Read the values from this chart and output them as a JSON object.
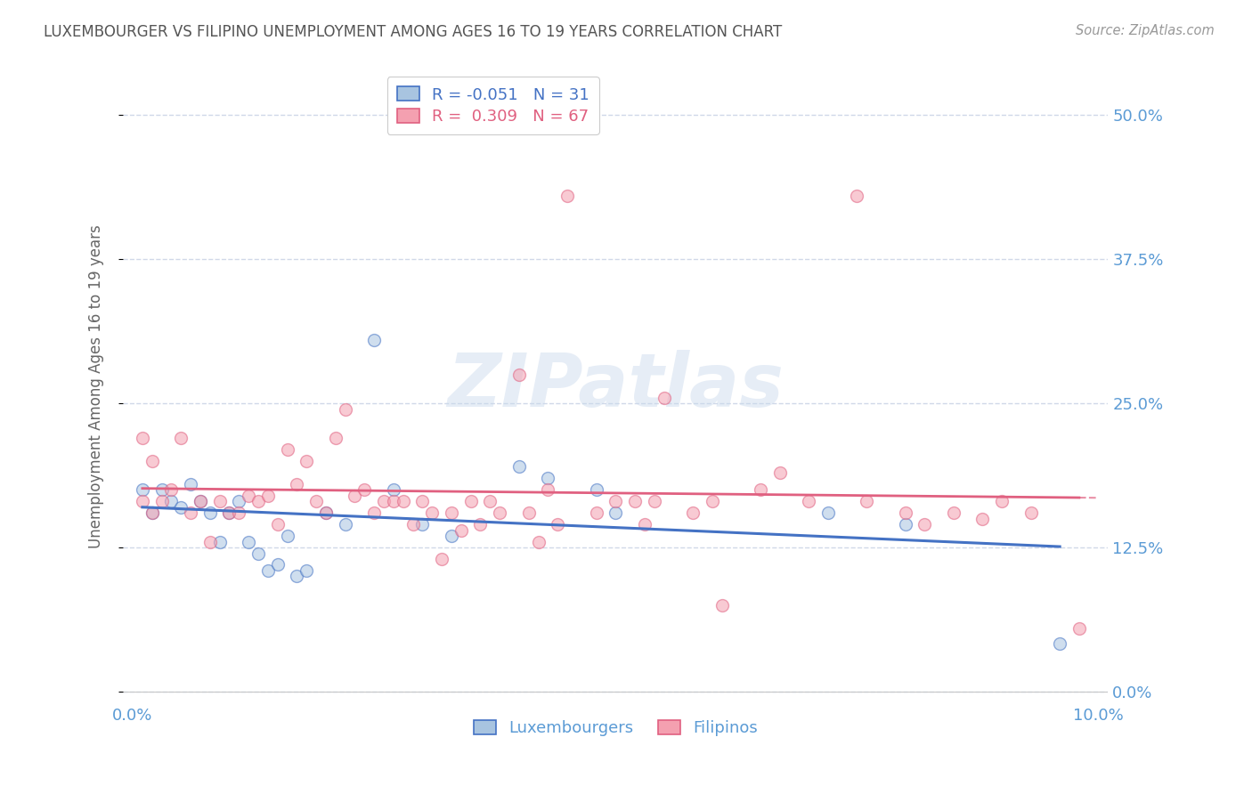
{
  "title": "LUXEMBOURGER VS FILIPINO UNEMPLOYMENT AMONG AGES 16 TO 19 YEARS CORRELATION CHART",
  "source": "Source: ZipAtlas.com",
  "ylabel": "Unemployment Among Ages 16 to 19 years",
  "legend_lux": "Luxembourgers",
  "legend_fil": "Filipinos",
  "R_lux": -0.051,
  "N_lux": 31,
  "R_fil": 0.309,
  "N_fil": 67,
  "xlim": [
    -0.001,
    0.101
  ],
  "ylim": [
    -0.01,
    0.54
  ],
  "yticks": [
    0.0,
    0.125,
    0.25,
    0.375,
    0.5
  ],
  "ytick_labels": [
    "0.0%",
    "12.5%",
    "25.0%",
    "37.5%",
    "50.0%"
  ],
  "xticks": [
    0.0,
    0.1
  ],
  "xtick_labels": [
    "0.0%",
    "10.0%"
  ],
  "color_lux": "#a8c4e0",
  "color_fil": "#f4a0b0",
  "line_color_lux": "#4472c4",
  "line_color_fil": "#e06080",
  "title_color": "#555555",
  "axis_color": "#5b9bd5",
  "background_color": "#ffffff",
  "grid_color": "#d0d8e8",
  "lux_x": [
    0.001,
    0.002,
    0.003,
    0.004,
    0.005,
    0.006,
    0.007,
    0.008,
    0.009,
    0.01,
    0.011,
    0.012,
    0.013,
    0.014,
    0.015,
    0.016,
    0.017,
    0.018,
    0.02,
    0.022,
    0.025,
    0.027,
    0.03,
    0.033,
    0.04,
    0.043,
    0.048,
    0.05,
    0.072,
    0.08,
    0.096
  ],
  "lux_y": [
    0.175,
    0.155,
    0.175,
    0.165,
    0.16,
    0.18,
    0.165,
    0.155,
    0.13,
    0.155,
    0.165,
    0.13,
    0.12,
    0.105,
    0.11,
    0.135,
    0.1,
    0.105,
    0.155,
    0.145,
    0.305,
    0.175,
    0.145,
    0.135,
    0.195,
    0.185,
    0.175,
    0.155,
    0.155,
    0.145,
    0.042
  ],
  "fil_x": [
    0.001,
    0.001,
    0.002,
    0.002,
    0.003,
    0.004,
    0.005,
    0.006,
    0.007,
    0.008,
    0.009,
    0.01,
    0.011,
    0.012,
    0.013,
    0.014,
    0.015,
    0.016,
    0.017,
    0.018,
    0.019,
    0.02,
    0.021,
    0.022,
    0.023,
    0.024,
    0.025,
    0.026,
    0.027,
    0.028,
    0.029,
    0.03,
    0.031,
    0.032,
    0.033,
    0.034,
    0.035,
    0.036,
    0.037,
    0.038,
    0.04,
    0.041,
    0.042,
    0.043,
    0.044,
    0.045,
    0.048,
    0.05,
    0.052,
    0.053,
    0.054,
    0.055,
    0.058,
    0.06,
    0.061,
    0.065,
    0.067,
    0.07,
    0.075,
    0.076,
    0.08,
    0.082,
    0.085,
    0.088,
    0.09,
    0.093,
    0.098
  ],
  "fil_y": [
    0.165,
    0.22,
    0.2,
    0.155,
    0.165,
    0.175,
    0.22,
    0.155,
    0.165,
    0.13,
    0.165,
    0.155,
    0.155,
    0.17,
    0.165,
    0.17,
    0.145,
    0.21,
    0.18,
    0.2,
    0.165,
    0.155,
    0.22,
    0.245,
    0.17,
    0.175,
    0.155,
    0.165,
    0.165,
    0.165,
    0.145,
    0.165,
    0.155,
    0.115,
    0.155,
    0.14,
    0.165,
    0.145,
    0.165,
    0.155,
    0.275,
    0.155,
    0.13,
    0.175,
    0.145,
    0.43,
    0.155,
    0.165,
    0.165,
    0.145,
    0.165,
    0.255,
    0.155,
    0.165,
    0.075,
    0.175,
    0.19,
    0.165,
    0.43,
    0.165,
    0.155,
    0.145,
    0.155,
    0.15,
    0.165,
    0.155,
    0.055
  ],
  "watermark": "ZIPatlas",
  "marker_size": 100,
  "alpha": 0.55
}
